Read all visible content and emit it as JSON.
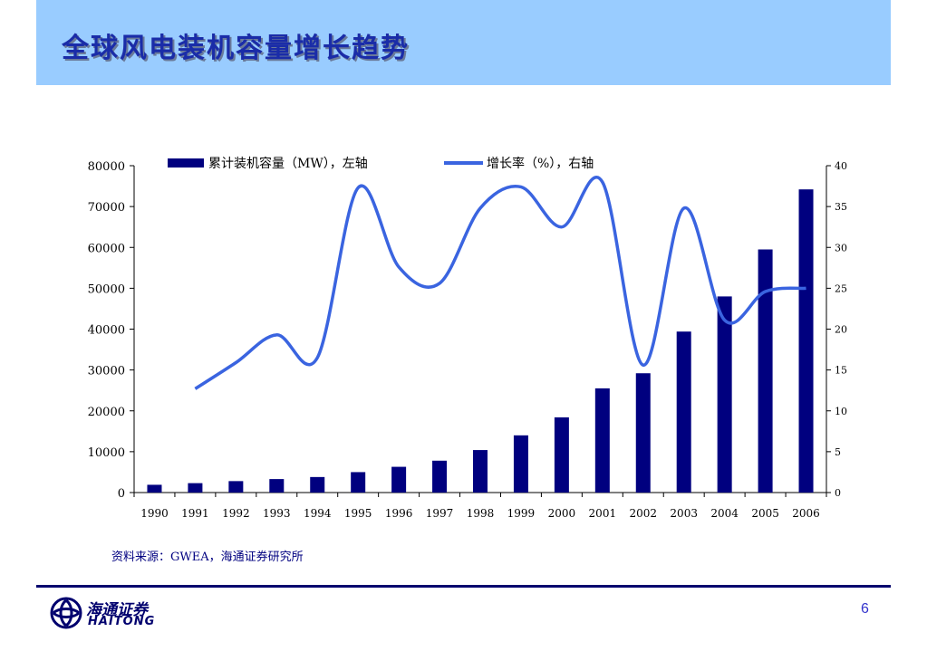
{
  "slide": {
    "title": "全球风电装机容量增长趋势",
    "source": "资料来源：GWEA，海通证券研究所",
    "page_number": "6"
  },
  "logo": {
    "name_cn": "海通证券",
    "name_en": "HAITONG",
    "color": "#00006e"
  },
  "colors": {
    "header_band": "#99ccff",
    "title": "#1a2ca8",
    "bars": "#00007f",
    "line": "#3a64e0"
  },
  "chart_data": {
    "type": "bar+line",
    "title": "",
    "categories": [
      "1990",
      "1991",
      "1992",
      "1993",
      "1994",
      "1995",
      "1996",
      "1997",
      "1998",
      "1999",
      "2000",
      "2001",
      "2002",
      "2003",
      "2004",
      "2005",
      "2006"
    ],
    "series": [
      {
        "name": "累计装机容量（MW），左轴",
        "type": "bar",
        "axis": "left",
        "values": [
          1900,
          2300,
          2800,
          3300,
          3800,
          5000,
          6300,
          7800,
          10400,
          14000,
          18400,
          25500,
          29200,
          39400,
          48000,
          59500,
          74200
        ]
      },
      {
        "name": "增长率（%），右轴",
        "type": "line",
        "axis": "right",
        "smooth": true,
        "values": [
          null,
          12.7,
          15.9,
          19.3,
          16.5,
          37.3,
          27.6,
          25.6,
          34.8,
          37.4,
          32.5,
          38.0,
          15.6,
          34.8,
          21.1,
          24.6,
          25.0
        ]
      }
    ],
    "y_left": {
      "min": 0,
      "max": 80000,
      "ticks": [
        "0",
        "10000",
        "20000",
        "30000",
        "40000",
        "50000",
        "60000",
        "70000",
        "80000"
      ]
    },
    "y_right": {
      "min": 0,
      "max": 40,
      "ticks": [
        "0",
        "5",
        "10",
        "15",
        "20",
        "25",
        "30",
        "35",
        "40"
      ]
    },
    "legend": "top",
    "grid": false
  }
}
